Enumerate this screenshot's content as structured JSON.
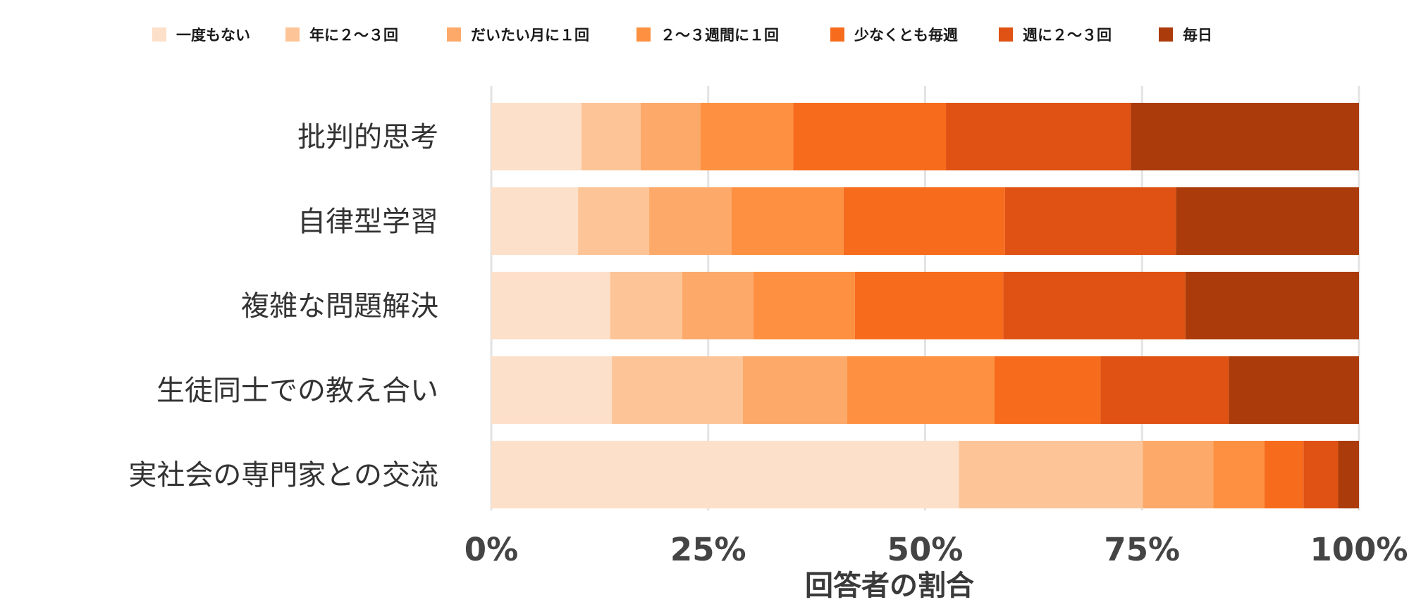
{
  "chart_data": {
    "type": "bar",
    "orientation": "horizontal",
    "stacked": true,
    "normalized": true,
    "categories": [
      "批判的思考",
      "自律型学習",
      "複雑な問題解決",
      "生徒同士での教え合い",
      "実社会の専門家との交流"
    ],
    "series": [
      {
        "name": "一度もない",
        "color": "#fde0c9",
        "values": [
          10.4,
          10.0,
          13.7,
          13.9,
          53.9
        ]
      },
      {
        "name": "年に２～３回",
        "color": "#fdc597",
        "values": [
          6.8,
          8.2,
          8.3,
          15.1,
          21.2
        ]
      },
      {
        "name": "だいたい月に１回",
        "color": "#fca96a",
        "values": [
          6.9,
          9.5,
          8.2,
          12.0,
          8.1
        ]
      },
      {
        "name": "２～３週間に１回",
        "color": "#fd9141",
        "values": [
          10.7,
          12.9,
          11.7,
          17.0,
          5.9
        ]
      },
      {
        "name": "少なくとも毎週",
        "color": "#f76b1c",
        "values": [
          17.6,
          18.6,
          17.1,
          12.2,
          4.5
        ]
      },
      {
        "name": "週に２～３回",
        "color": "#df5213",
        "values": [
          21.3,
          19.7,
          21.0,
          14.8,
          4.0
        ]
      },
      {
        "name": "毎日",
        "color": "#ab3b0b",
        "values": [
          26.3,
          21.1,
          20.0,
          15.0,
          2.4
        ]
      }
    ],
    "xlabel": "回答者の割合",
    "ylabel": "",
    "xlim": [
      0,
      100
    ],
    "xticks": [
      0,
      25,
      50,
      75,
      100
    ],
    "xtick_labels": [
      "0%",
      "25%",
      "50%",
      "75%",
      "100%"
    ],
    "grid": "vertical",
    "legend_position": "top"
  }
}
